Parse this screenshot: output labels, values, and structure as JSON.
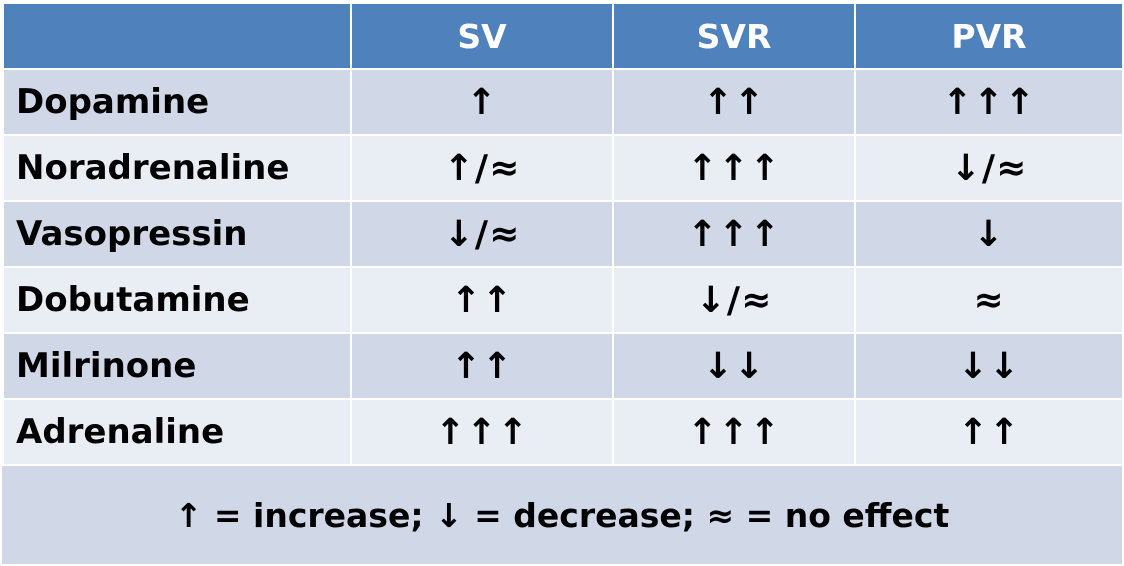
{
  "table": {
    "headers": [
      "",
      "SV",
      "SVR",
      "PVR"
    ],
    "rows": [
      {
        "drug": "Dopamine",
        "sv": "↑",
        "svr": "↑↑",
        "pvr": "↑↑↑"
      },
      {
        "drug": "Noradrenaline",
        "sv": "↑/≈",
        "svr": "↑↑↑",
        "pvr": "↓/≈"
      },
      {
        "drug": "Vasopressin",
        "sv": "↓/≈",
        "svr": "↑↑↑",
        "pvr": "↓"
      },
      {
        "drug": "Dobutamine",
        "sv": "↑↑",
        "svr": "↓/≈",
        "pvr": "≈"
      },
      {
        "drug": "Milrinone",
        "sv": "↑↑",
        "svr": "↓↓",
        "pvr": "↓↓"
      },
      {
        "drug": "Adrenaline",
        "sv": "↑↑↑",
        "svr": "↑↑↑",
        "pvr": "↑↑"
      }
    ]
  },
  "legend": {
    "text": "↑ = increase; ↓ = decrease; ≈ = no effect"
  },
  "colors": {
    "header_bg": "#4f81bd",
    "row_dark": "#d0d8e8",
    "row_light": "#e9edf4"
  }
}
